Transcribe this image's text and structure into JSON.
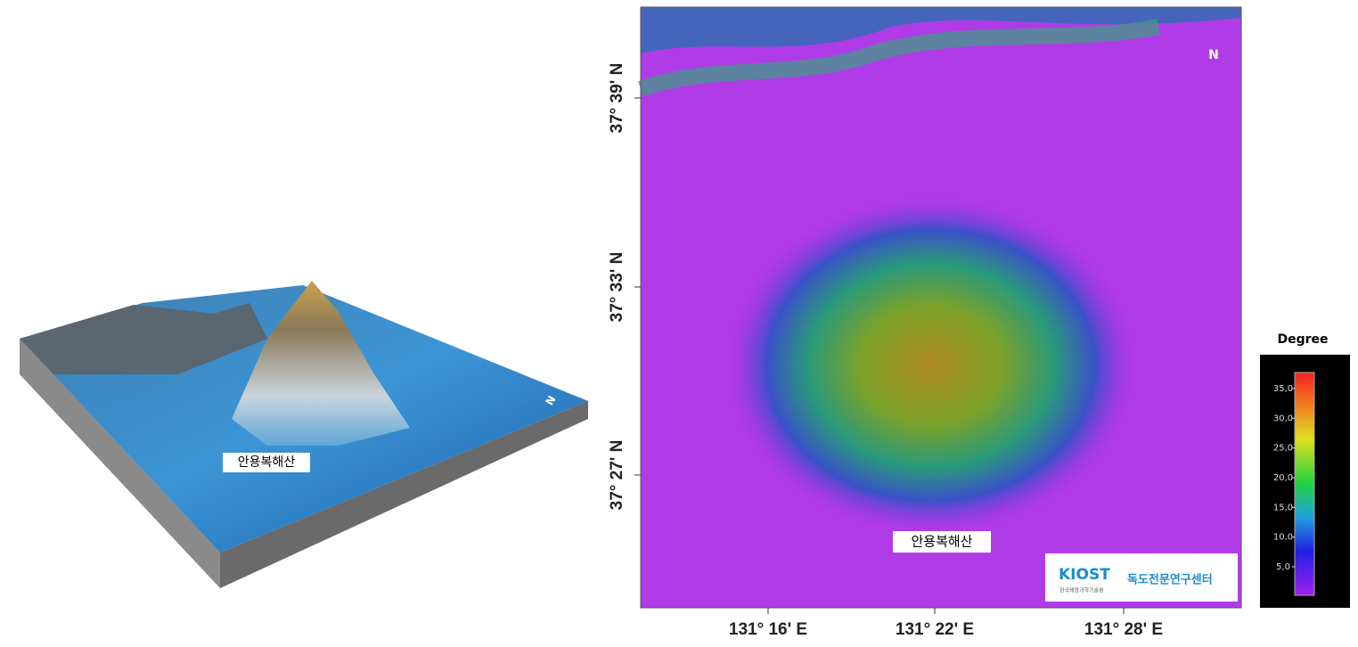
{
  "left_panel": {
    "label": "안용복해산",
    "north": "N"
  },
  "map": {
    "label": "안용복해산",
    "lat_labels": [
      "37° 39' N",
      "37° 33' N",
      "37° 27' N"
    ],
    "lon_labels": [
      "131° 16' E",
      "131° 22' E",
      "131° 28' E"
    ],
    "north": "N",
    "logo": {
      "name": "KIOST",
      "subtitle": "한국해양과학기술원",
      "center": "독도전문연구센터"
    }
  },
  "colorbar": {
    "title": "Degree",
    "ticks": [
      "35,0",
      "30,0",
      "25,0",
      "20,0",
      "15,0",
      "10,0",
      "5,0"
    ]
  }
}
